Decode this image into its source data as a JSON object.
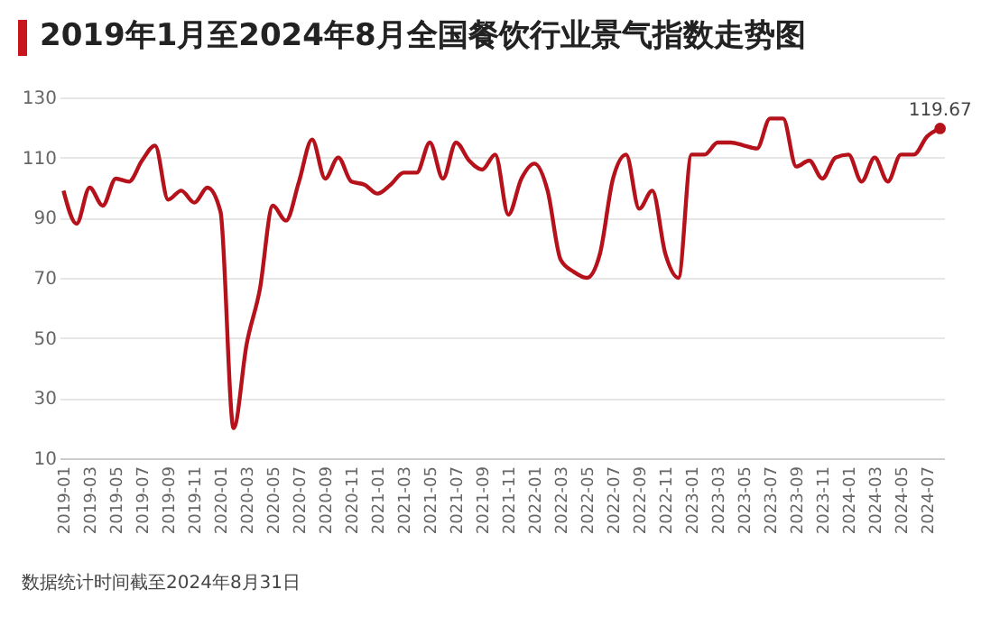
{
  "chart_data": {
    "type": "line",
    "title": "2019年1月至2024年8月全国餐饮行业景气指数走势图",
    "categories": [
      "2019-01",
      null,
      "2019-03",
      null,
      "2019-05",
      null,
      "2019-07",
      null,
      "2019-09",
      null,
      "2019-11",
      null,
      "2020-01",
      null,
      "2020-03",
      null,
      "2020-05",
      null,
      "2020-07",
      null,
      "2020-09",
      null,
      "2020-11",
      null,
      "2021-01",
      null,
      "2021-03",
      null,
      "2021-05",
      null,
      "2021-07",
      null,
      "2021-09",
      null,
      "2021-11",
      null,
      "2022-01",
      null,
      "2022-03",
      null,
      "2022-05",
      null,
      "2022-07",
      null,
      "2022-09",
      null,
      "2022-11",
      null,
      "2023-01",
      null,
      "2023-03",
      null,
      "2023-05",
      null,
      "2023-07",
      null,
      "2023-09",
      null,
      "2023-11",
      null,
      "2024-01",
      null,
      "2024-03",
      null,
      "2024-05",
      null,
      "2024-07",
      null
    ],
    "series": [
      {
        "color": "#b5121b",
        "value_labels": [
          null,
          null,
          null,
          null,
          null,
          null,
          null,
          null,
          null,
          null,
          null,
          null,
          null,
          null,
          null,
          null,
          null,
          null,
          null,
          null,
          null,
          null,
          null,
          null,
          null,
          null,
          null,
          null,
          null,
          null,
          null,
          null,
          null,
          null,
          null,
          null,
          null,
          null,
          null,
          null,
          null,
          null,
          null,
          null,
          null,
          null,
          null,
          null,
          null,
          null,
          null,
          null,
          null,
          null,
          null,
          null,
          null,
          null,
          null,
          null,
          null,
          null,
          null,
          null,
          null,
          null,
          null,
          "119.67"
        ],
        "values": [
          99,
          88,
          100,
          94,
          103,
          102,
          109,
          114,
          96,
          99,
          95,
          100,
          92,
          20,
          48,
          66,
          94,
          89,
          102,
          116,
          103,
          110,
          102,
          101,
          98,
          101,
          105,
          105,
          115,
          103,
          115,
          109,
          106,
          111,
          91,
          103,
          108,
          99,
          76,
          72,
          70,
          78,
          103,
          111,
          93,
          99,
          78,
          70,
          111,
          111,
          115,
          115,
          114,
          113,
          123,
          123,
          107,
          109,
          103,
          110,
          111,
          102,
          110,
          102,
          111,
          111,
          117,
          119.67
        ]
      }
    ],
    "ylim": [
      10,
      130
    ],
    "yticks": [
      10,
      30,
      50,
      70,
      90,
      110,
      130
    ],
    "grid": "y",
    "line_style": "solid",
    "marker": "none",
    "legend": false,
    "annotations": [
      "数据统计时间截至2024年8月31日"
    ]
  }
}
